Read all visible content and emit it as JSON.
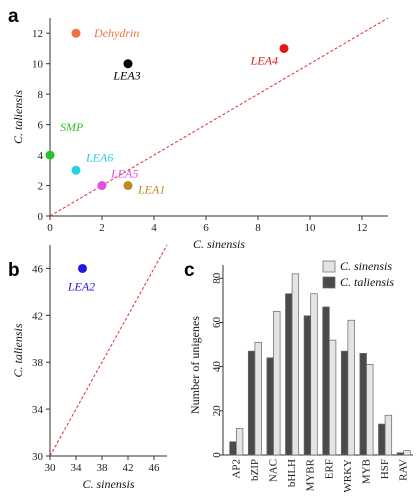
{
  "panels": {
    "a": "a",
    "b": "b",
    "c": "c"
  },
  "chart_data": [
    {
      "type": "scatter",
      "panel": "a",
      "xlabel": "C. sinensis",
      "ylabel": "C. taliensis",
      "xlim": [
        0,
        13
      ],
      "ylim": [
        0,
        13
      ],
      "xticks": [
        0,
        2,
        4,
        6,
        8,
        10,
        12
      ],
      "yticks": [
        0,
        2,
        4,
        6,
        8,
        10,
        12
      ],
      "reference_line": "y = x (dashed red)",
      "points": [
        {
          "label": "Dehydrin",
          "x": 1,
          "y": 12,
          "color": "#f07040"
        },
        {
          "label": "LEA4",
          "x": 9,
          "y": 11,
          "color": "#e01818"
        },
        {
          "label": "LEA3",
          "x": 3,
          "y": 10,
          "color": "#000000"
        },
        {
          "label": "SMP",
          "x": 0,
          "y": 4,
          "color": "#2cc02c"
        },
        {
          "label": "LEA6",
          "x": 1,
          "y": 3,
          "color": "#28d0e0"
        },
        {
          "label": "LEA5",
          "x": 2,
          "y": 2,
          "color": "#e050e0"
        },
        {
          "label": "LEA1",
          "x": 3,
          "y": 2,
          "color": "#c08a20"
        }
      ]
    },
    {
      "type": "scatter",
      "panel": "b",
      "xlabel": "C. sinensis",
      "ylabel": "C. taliensis",
      "xlim": [
        30,
        48
      ],
      "ylim": [
        30,
        48
      ],
      "xticks": [
        30,
        34,
        38,
        42,
        46
      ],
      "yticks": [
        30,
        34,
        38,
        42,
        46
      ],
      "reference_line": "y = x (dashed red)",
      "points": [
        {
          "label": "LEA2",
          "x": 35,
          "y": 46,
          "color": "#1a1ae0"
        }
      ]
    },
    {
      "type": "bar",
      "panel": "c",
      "ylabel": "Number of unigenes",
      "ylim": [
        0,
        86
      ],
      "yticks": [
        0,
        20,
        40,
        60,
        80
      ],
      "categories": [
        "AP2",
        "bZIP",
        "NAC",
        "bHLH",
        "MYBR",
        "ERF",
        "WRKY",
        "MYB",
        "HSF",
        "RAV"
      ],
      "series": [
        {
          "name": "C. sinensis",
          "color": "#e4e4e4",
          "values": [
            12,
            51,
            65,
            82,
            73,
            52,
            61,
            41,
            18,
            2
          ]
        },
        {
          "name": "C. taliensis",
          "color": "#4a4a4a",
          "values": [
            6,
            47,
            44,
            73,
            63,
            67,
            47,
            46,
            14,
            1
          ]
        }
      ],
      "legend_position": "top-right"
    }
  ]
}
